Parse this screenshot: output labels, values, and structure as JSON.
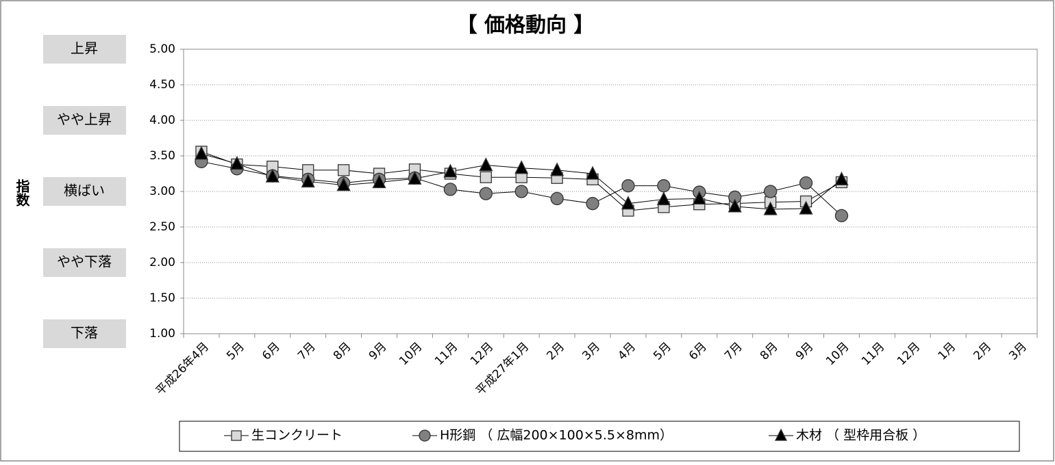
{
  "chart_data": {
    "type": "line",
    "title": "【 価格動向 】",
    "y_label": "指数",
    "categories": [
      "平成26年4月",
      "5月",
      "6月",
      "7月",
      "8月",
      "9月",
      "10月",
      "11月",
      "12月",
      "平成27年1月",
      "2月",
      "3月",
      "4月",
      "5月",
      "6月",
      "7月",
      "8月",
      "9月",
      "10月",
      "11月",
      "12月",
      "1月",
      "2月",
      "3月"
    ],
    "series": [
      {
        "name": "生コンクリート",
        "color": "#d9d9d9",
        "marker": "square",
        "values": [
          3.56,
          3.38,
          3.35,
          3.3,
          3.3,
          3.25,
          3.31,
          3.25,
          3.2,
          3.2,
          3.19,
          3.17,
          2.73,
          2.78,
          2.82,
          2.83,
          2.85,
          2.86,
          3.13,
          null,
          null,
          null,
          null,
          null
        ]
      },
      {
        "name": "H形鋼 （ 広幅200×100×5.5×8mm）",
        "color": "#808080",
        "marker": "circle",
        "values": [
          3.42,
          3.32,
          3.22,
          3.17,
          3.12,
          3.17,
          3.19,
          3.03,
          2.97,
          3.0,
          2.9,
          2.83,
          3.08,
          3.08,
          2.99,
          2.92,
          3.0,
          3.12,
          2.66,
          null,
          null,
          null,
          null,
          null
        ]
      },
      {
        "name": "木材 （ 型枠用合板 ）",
        "color": "#000000",
        "marker": "triangle",
        "values": [
          3.53,
          3.39,
          3.21,
          3.14,
          3.09,
          3.13,
          3.18,
          3.28,
          3.37,
          3.33,
          3.3,
          3.25,
          2.83,
          2.89,
          2.9,
          2.79,
          2.75,
          2.76,
          3.17,
          null,
          null,
          null,
          null,
          null
        ]
      }
    ],
    "ylim": [
      1,
      5
    ],
    "yticks": [
      {
        "value": 1,
        "label": "1.00"
      },
      {
        "value": 1.5,
        "label": "1.50"
      },
      {
        "value": 2,
        "label": "2.00"
      },
      {
        "value": 2.5,
        "label": "2.50"
      },
      {
        "value": 3,
        "label": "3.00"
      },
      {
        "value": 3.5,
        "label": "3.50"
      },
      {
        "value": 4,
        "label": "4.00"
      },
      {
        "value": 4.5,
        "label": "4.50"
      },
      {
        "value": 5,
        "label": "5.00"
      }
    ],
    "level_labels": [
      {
        "value": 5,
        "label": "上昇"
      },
      {
        "value": 4,
        "label": "やや上昇"
      },
      {
        "value": 3,
        "label": "横ばい"
      },
      {
        "value": 2,
        "label": "やや下落"
      },
      {
        "value": 1,
        "label": "下落"
      }
    ],
    "grid": true,
    "legend": "bottom"
  }
}
